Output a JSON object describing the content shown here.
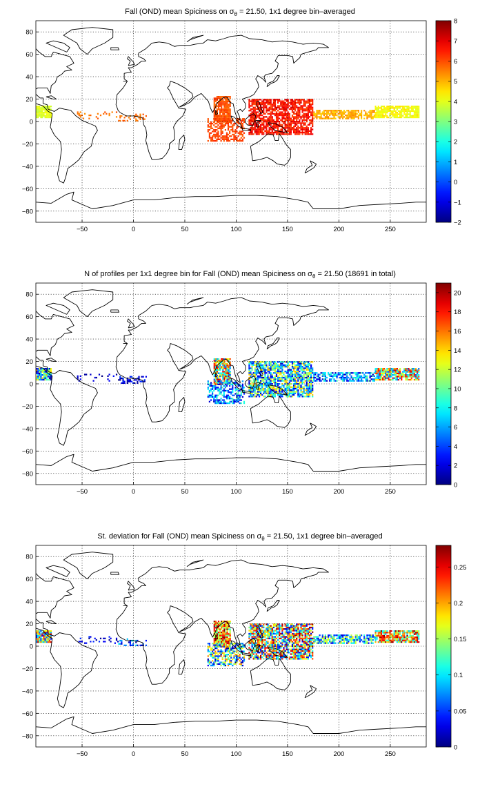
{
  "figure": {
    "panels": [
      {
        "id": "mean",
        "title_pre": "Fall (OND) mean Spiciness on ",
        "title_post": " = 21.50, 1x1 degree bin–averaged",
        "sym_sigma": "σ",
        "sym_theta": "θ",
        "colorbar": {
          "min": -2,
          "max": 8,
          "ticks": [
            -2,
            -1,
            0,
            1,
            2,
            3,
            4,
            5,
            6,
            7,
            8
          ]
        }
      },
      {
        "id": "count",
        "title_pre": "N of profiles per 1x1 degree bin for Fall (OND) mean Spiciness on ",
        "title_post": " = 21.50 (18691 in total)",
        "sym_sigma": "σ",
        "sym_theta": "θ",
        "colorbar": {
          "min": 0,
          "max": 21,
          "ticks": [
            0,
            2,
            4,
            6,
            8,
            10,
            12,
            14,
            16,
            18,
            20
          ]
        }
      },
      {
        "id": "std",
        "title_pre": "St. deviation for Fall (OND) mean Spiciness on ",
        "title_post": " = 21.50, 1x1 degree bin–averaged",
        "sym_sigma": "σ",
        "sym_theta": "θ",
        "colorbar": {
          "min": 0,
          "max": 0.28,
          "ticks": [
            0,
            0.05,
            0.1,
            0.15,
            0.2,
            0.25
          ]
        }
      }
    ],
    "x_ticks": [
      -50,
      0,
      50,
      100,
      150,
      200,
      250
    ],
    "y_ticks": [
      -80,
      -60,
      -40,
      -20,
      0,
      20,
      40,
      60,
      80
    ],
    "xlim": [
      -95,
      285
    ],
    "ylim": [
      -90,
      90
    ],
    "grid": "on",
    "colormap": "jet"
  }
}
